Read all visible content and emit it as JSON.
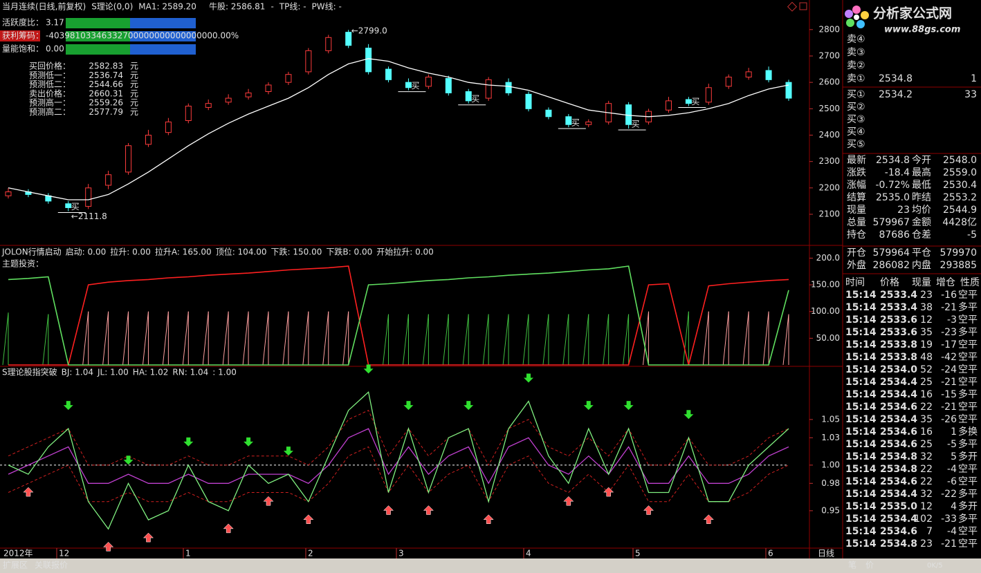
{
  "title_bar": {
    "instrument": "当月连续(日线,前复权)",
    "indicator": "S理论(0,0)",
    "ma_label": "MA1: 2589.20",
    "niu": "牛股: 2586.81",
    "niu_dash": "-",
    "tp": "TP线: -",
    "pw": "PW线: -"
  },
  "gauges": [
    {
      "label": "活跃度比：",
      "value": "3.17"
    },
    {
      "label": "获利筹码：",
      "value": "-40398103346332700000000000000000.00%"
    },
    {
      "label": "量能饱和：",
      "value": "0.00"
    }
  ],
  "forecast": [
    {
      "label": "买回价格：",
      "value": "2582.83",
      "unit": "元"
    },
    {
      "label": "预测低一：",
      "value": "2536.74",
      "unit": "元"
    },
    {
      "label": "预测低二：",
      "value": "2544.66",
      "unit": "元"
    },
    {
      "label": "卖出价格：",
      "value": "2660.31",
      "unit": "元"
    },
    {
      "label": "预测高一：",
      "value": "2559.26",
      "unit": "元"
    },
    {
      "label": "预测高二：",
      "value": "2577.79",
      "unit": "元"
    }
  ],
  "main_chart": {
    "type": "candlestick",
    "ylim": [
      1990,
      2865
    ],
    "yticks": [
      2100,
      2200,
      2300,
      2400,
      2500,
      2600,
      2700,
      2800
    ],
    "up_color": "#ff3c3c",
    "down_color": "#54ffff",
    "ma_color": "#ffffff",
    "buy_label": "买",
    "high_label": "←2799.0",
    "low_label": "←2111.8",
    "open": [
      2170,
      2185,
      2170,
      2140,
      2130,
      2210,
      2260,
      2365,
      2410,
      2455,
      2505,
      2525,
      2545,
      2565,
      2600,
      2640,
      2720,
      2790,
      2730,
      2650,
      2600,
      2585,
      2615,
      2565,
      2540,
      2600,
      2555,
      2495,
      2470,
      2440,
      2450,
      2515,
      2450,
      2495,
      2535,
      2525,
      2585,
      2620,
      2645,
      2600
    ],
    "close": [
      2185,
      2175,
      2150,
      2125,
      2200,
      2250,
      2360,
      2400,
      2450,
      2510,
      2520,
      2540,
      2560,
      2590,
      2630,
      2720,
      2770,
      2740,
      2640,
      2610,
      2580,
      2620,
      2560,
      2530,
      2610,
      2560,
      2500,
      2470,
      2440,
      2450,
      2520,
      2440,
      2490,
      2530,
      2520,
      2580,
      2620,
      2640,
      2610,
      2540
    ],
    "high": [
      2200,
      2195,
      2180,
      2150,
      2215,
      2265,
      2370,
      2420,
      2465,
      2520,
      2535,
      2555,
      2575,
      2600,
      2640,
      2730,
      2780,
      2799,
      2745,
      2660,
      2615,
      2630,
      2625,
      2575,
      2620,
      2615,
      2565,
      2505,
      2480,
      2460,
      2530,
      2525,
      2500,
      2545,
      2545,
      2595,
      2630,
      2655,
      2660,
      2610
    ],
    "low": [
      2160,
      2165,
      2140,
      2111.8,
      2120,
      2195,
      2250,
      2355,
      2400,
      2445,
      2495,
      2515,
      2535,
      2555,
      2590,
      2630,
      2710,
      2730,
      2630,
      2600,
      2570,
      2575,
      2550,
      2520,
      2530,
      2550,
      2490,
      2460,
      2430,
      2430,
      2440,
      2425,
      2440,
      2485,
      2510,
      2515,
      2575,
      2610,
      2600,
      2530
    ],
    "ma": [
      2200,
      2185,
      2170,
      2155,
      2155,
      2175,
      2215,
      2260,
      2310,
      2360,
      2405,
      2445,
      2480,
      2510,
      2540,
      2580,
      2630,
      2670,
      2690,
      2680,
      2655,
      2635,
      2620,
      2600,
      2590,
      2585,
      2570,
      2545,
      2520,
      2495,
      2485,
      2475,
      2470,
      2475,
      2485,
      2500,
      2520,
      2550,
      2575,
      2590
    ]
  },
  "mid_chart": {
    "type": "line",
    "header": [
      {
        "text": "JOLON行情启动",
        "color": "#ffffff"
      },
      {
        "text": "启动: 0.00",
        "color": "#ffffff"
      },
      {
        "text": "拉升: 0.00",
        "color": "#ff4040"
      },
      {
        "text": "拉升A: 165.00",
        "color": "#ff4040"
      },
      {
        "text": "顶位: 104.00",
        "color": "#40ff40"
      },
      {
        "text": "下跌: 150.00",
        "color": "#ffffff"
      },
      {
        "text": "下跌B: 0.00",
        "color": "#ffffff"
      },
      {
        "text": "开始拉升: 0.00",
        "color": "#4060ff"
      }
    ],
    "subheader": "主题投资：",
    "ylim": [
      0,
      220
    ],
    "yticks": [
      {
        "value": 50,
        "label": "50.00"
      },
      {
        "value": 100,
        "label": "100.00"
      },
      {
        "value": 150,
        "label": "150.00"
      },
      {
        "value": 200,
        "label": "200.0"
      }
    ],
    "series": [
      {
        "name": "red",
        "color": "#ff2020",
        "values": [
          0,
          0,
          0,
          0,
          150,
          155,
          158,
          160,
          163,
          165,
          168,
          170,
          172,
          175,
          178,
          180,
          182,
          185,
          0,
          0,
          0,
          0,
          0,
          0,
          0,
          0,
          0,
          0,
          0,
          0,
          0,
          0,
          150,
          152,
          0,
          148,
          152,
          155,
          158,
          160
        ]
      },
      {
        "name": "green",
        "color": "#60e060",
        "values": [
          160,
          162,
          165,
          0,
          0,
          0,
          0,
          0,
          0,
          0,
          0,
          0,
          0,
          0,
          0,
          0,
          0,
          0,
          150,
          152,
          155,
          158,
          160,
          163,
          165,
          168,
          170,
          172,
          175,
          178,
          180,
          185,
          0,
          0,
          0,
          0,
          0,
          0,
          0,
          140
        ]
      }
    ],
    "bars": [
      98,
      0,
      95,
      0,
      100,
      100,
      100,
      100,
      100,
      100,
      100,
      100,
      100,
      100,
      100,
      100,
      100,
      100,
      0,
      95,
      95,
      95,
      95,
      95,
      95,
      95,
      95,
      95,
      95,
      95,
      95,
      95,
      100,
      0,
      100,
      100,
      100,
      100,
      100,
      95
    ]
  },
  "low_chart": {
    "type": "line",
    "header": [
      {
        "text": "S理论股指突破",
        "color": "#ffffff"
      },
      {
        "text": "BJ: 1.04",
        "color": "#ff4040"
      },
      {
        "text": "JL: 1.00",
        "color": "#ffffff"
      },
      {
        "text": "HA: 1.02",
        "color": "#ff40ff"
      },
      {
        "text": "RN: 1.04",
        "color": "#40ff40"
      },
      {
        "text": ": 1.00",
        "color": "#ffffff"
      }
    ],
    "ylim": [
      0.909,
      1.106
    ],
    "yticks": [
      0.95,
      0.98,
      {
        "value": 1,
        "label": "1.00"
      },
      1.03,
      1.05
    ],
    "series": [
      {
        "name": "upper",
        "color": "#d02020",
        "dashed": true,
        "values": [
          1.01,
          1.02,
          1.03,
          1.04,
          1.0,
          1.0,
          1.01,
          1.0,
          1.0,
          1.01,
          1.0,
          1.0,
          1.01,
          1.01,
          1.01,
          1.0,
          1.02,
          1.05,
          1.06,
          1.01,
          1.04,
          1.01,
          1.03,
          1.04,
          1.0,
          1.04,
          1.05,
          1.02,
          1.01,
          1.03,
          1.01,
          1.04,
          1.0,
          1.0,
          1.03,
          1.0,
          1.0,
          1.01,
          1.03,
          1.04
        ]
      },
      {
        "name": "lower",
        "color": "#d02020",
        "dashed": true,
        "values": [
          0.97,
          0.98,
          0.99,
          1.0,
          0.96,
          0.96,
          0.97,
          0.96,
          0.96,
          0.97,
          0.96,
          0.96,
          0.97,
          0.97,
          0.97,
          0.96,
          0.98,
          1.01,
          1.02,
          0.97,
          1.0,
          0.97,
          0.99,
          1.0,
          0.96,
          1.0,
          1.01,
          0.98,
          0.97,
          0.99,
          0.97,
          1.0,
          0.96,
          0.96,
          0.99,
          0.96,
          0.96,
          0.97,
          0.99,
          1.0
        ]
      },
      {
        "name": "purple",
        "color": "#c040d0",
        "values": [
          0.99,
          1.0,
          1.01,
          1.02,
          0.98,
          0.98,
          0.99,
          0.98,
          0.98,
          0.99,
          0.98,
          0.98,
          0.99,
          0.99,
          0.99,
          0.98,
          1.0,
          1.03,
          1.04,
          0.99,
          1.02,
          0.99,
          1.01,
          1.02,
          0.98,
          1.02,
          1.03,
          1.0,
          0.99,
          1.01,
          0.99,
          1.02,
          0.98,
          0.98,
          1.01,
          0.98,
          0.98,
          0.99,
          1.01,
          1.02
        ]
      },
      {
        "name": "green",
        "color": "#80f080",
        "values": [
          1.0,
          0.99,
          1.02,
          1.04,
          0.96,
          0.93,
          0.98,
          0.94,
          0.95,
          1.0,
          0.96,
          0.95,
          1.0,
          0.98,
          0.99,
          0.96,
          1.01,
          1.06,
          1.08,
          0.97,
          1.04,
          0.97,
          1.03,
          1.04,
          0.96,
          1.04,
          1.07,
          1.01,
          0.98,
          1.04,
          0.99,
          1.04,
          0.97,
          0.97,
          1.03,
          0.96,
          0.96,
          1.0,
          1.02,
          1.04
        ]
      }
    ]
  },
  "time_axis": [
    "2012年",
    "12",
    "1",
    "2",
    "3",
    "4",
    "5",
    "6",
    "日线"
  ],
  "logo": {
    "name": "分析家公式网",
    "url": "www.88gs.com"
  },
  "order_book": {
    "sell": [
      {
        "label": "卖④"
      },
      {
        "label": "卖③"
      },
      {
        "label": "卖②"
      },
      {
        "label": "卖①",
        "price": "2534.8",
        "volume": "1"
      }
    ],
    "buy": [
      {
        "label": "买①",
        "price": "2534.2",
        "volume": "33"
      },
      {
        "label": "买②"
      },
      {
        "label": "买③"
      },
      {
        "label": "买④"
      },
      {
        "label": "买⑤"
      }
    ]
  },
  "stats": [
    {
      "l1": "最新",
      "v1": "2534.8",
      "c1": "#40ff40",
      "l2": "今开",
      "v2": "2548.0",
      "c2": "#40ff40"
    },
    {
      "l1": "涨跌",
      "v1": "-18.4",
      "c1": "#40ff40",
      "l2": "最高",
      "v2": "2559.0",
      "c2": "#ff4040"
    },
    {
      "l1": "涨幅",
      "v1": "-0.72%",
      "c1": "#40ff40",
      "l2": "最低",
      "v2": "2530.4",
      "c2": "#40ff40"
    },
    {
      "l1": "结算",
      "v1": "2535.0",
      "c1": "#40ff40",
      "l2": "昨结",
      "v2": "2553.2",
      "c2": "#ffffff"
    },
    {
      "l1": "现量",
      "v1": "23",
      "c1": "#ffff60",
      "l2": "均价",
      "v2": "2544.9",
      "c2": "#40ff40"
    },
    {
      "l1": "总量",
      "v1": "579967",
      "c1": "#ffff60",
      "l2": "金额",
      "v2": "4428亿",
      "c2": "#40e0ff"
    },
    {
      "l1": "持仓",
      "v1": "87686",
      "c1": "#ffff60",
      "l2": "仓差",
      "v2": "-5",
      "c2": "#ffff60"
    },
    {
      "l1": "开仓",
      "v1": "579964",
      "c1": "#ffff60",
      "l2": "平仓",
      "v2": "579970",
      "c2": "#ffff60"
    },
    {
      "l1": "外盘",
      "v1": "286082",
      "c1": "#ff4040",
      "l2": "内盘",
      "v2": "293885",
      "c2": "#40ff40"
    }
  ],
  "trades": {
    "header": [
      "时间",
      "价格",
      "现量",
      "增仓",
      "性质"
    ],
    "rows": [
      [
        "15:14",
        "2533.4",
        "23",
        "-16",
        "空平"
      ],
      [
        "15:14",
        "2533.4",
        "38",
        "-21",
        "多平"
      ],
      [
        "15:14",
        "2533.6",
        "12",
        "-3",
        "空平"
      ],
      [
        "15:14",
        "2533.6",
        "35",
        "-23",
        "多平"
      ],
      [
        "15:14",
        "2533.8",
        "19",
        "-17",
        "空平"
      ],
      [
        "15:14",
        "2533.8",
        "48",
        "-42",
        "空平"
      ],
      [
        "15:14",
        "2534.0",
        "52",
        "-24",
        "空平"
      ],
      [
        "15:14",
        "2534.4",
        "25",
        "-21",
        "空平"
      ],
      [
        "15:14",
        "2534.4",
        "16",
        "-15",
        "多平"
      ],
      [
        "15:14",
        "2534.6",
        "22",
        "-21",
        "空平"
      ],
      [
        "15:14",
        "2534.4",
        "35",
        "-26",
        "空平"
      ],
      [
        "15:14",
        "2534.6",
        "16",
        "1",
        "多换"
      ],
      [
        "15:14",
        "2534.6",
        "25",
        "-5",
        "多平"
      ],
      [
        "15:14",
        "2534.8",
        "32",
        "5",
        "多开"
      ],
      [
        "15:14",
        "2534.8",
        "22",
        "-4",
        "空平"
      ],
      [
        "15:14",
        "2534.6",
        "22",
        "-6",
        "空平"
      ],
      [
        "15:14",
        "2534.4",
        "32",
        "-22",
        "多平"
      ],
      [
        "15:14",
        "2535.0",
        "12",
        "4",
        "多开"
      ],
      [
        "15:14",
        "2534.4",
        "102",
        "-33",
        "多平"
      ],
      [
        "15:14",
        "2534.6",
        "7",
        "-4",
        "空平"
      ],
      [
        "15:14",
        "2534.8",
        "23",
        "-21",
        "空平"
      ]
    ]
  },
  "bottom_bar": {
    "tabs": [
      "扩展区",
      "关联报价"
    ],
    "right": [
      "笔",
      "价"
    ],
    "status": "0K/5"
  }
}
